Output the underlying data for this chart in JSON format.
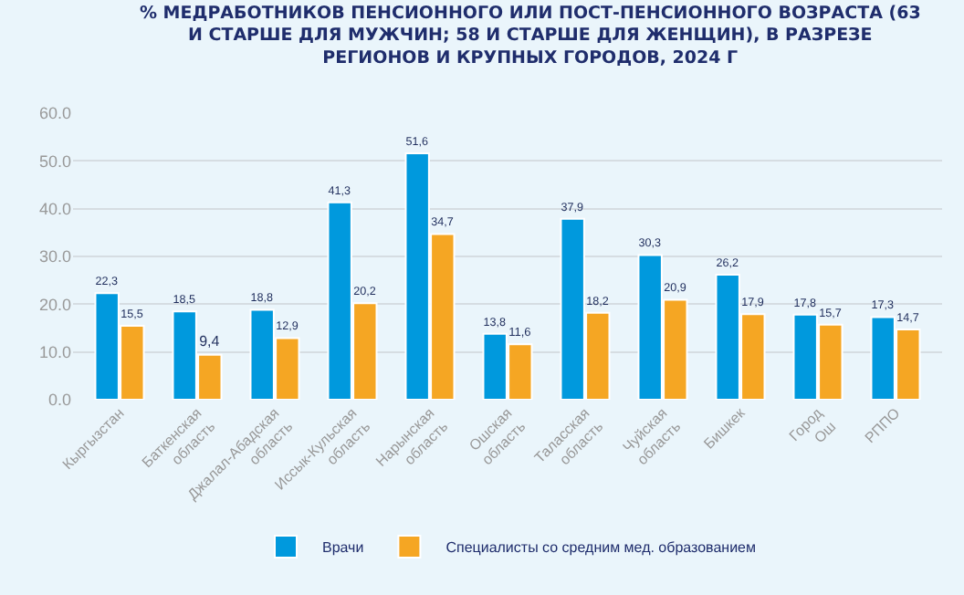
{
  "chart_data": {
    "type": "bar",
    "title": "% МЕДРАБОТНИКОВ ПЕНСИОННОГО ИЛИ ПОСТ-ПЕНСИОННОГО ВОЗРАСТА (63 И СТАРШЕ ДЛЯ МУЖЧИН; 58 И СТАРШЕ ДЛЯ ЖЕНЩИН), В РАЗРЕЗЕ РЕГИОНОВ И КРУПНЫХ ГОРОДОВ, 2024 Г",
    "categories": [
      "Кыргызстан",
      "Баткенская область",
      "Джалал-Абадская область",
      "Иссык-Кульская область",
      "Нарынская область",
      "Ошская область",
      "Таласская область",
      "Чуйская область",
      "Бишкек",
      "Город Ош",
      "РППО"
    ],
    "series": [
      {
        "name": "Врачи",
        "color": "#0099dd",
        "values": [
          22.3,
          18.5,
          18.8,
          41.3,
          51.6,
          13.8,
          37.9,
          30.3,
          26.2,
          17.8,
          17.3
        ],
        "value_labels": [
          "22,3",
          "18,5",
          "18,8",
          "41,3",
          "51,6",
          "13,8",
          "37,9",
          "30,3",
          "26,2",
          "17,8",
          "17,3"
        ]
      },
      {
        "name": "Специалисты со средним мед. образованием",
        "color": "#f5a623",
        "values": [
          15.5,
          9.4,
          12.9,
          20.2,
          34.7,
          11.6,
          18.2,
          20.9,
          17.9,
          15.7,
          14.7
        ],
        "value_labels": [
          "15,5",
          "9,4",
          "12,9",
          "20,2",
          "34,7",
          "11,6",
          "18,2",
          "20,9",
          "17,9",
          "15,7",
          "14,7"
        ]
      }
    ],
    "ylim": [
      0,
      60
    ],
    "yticks": [
      {
        "value": 0,
        "label": "0.0"
      },
      {
        "value": 10,
        "label": "10.0"
      },
      {
        "value": 20,
        "label": "20.0"
      },
      {
        "value": 30,
        "label": "30.0"
      },
      {
        "value": 40,
        "label": "40.0"
      },
      {
        "value": 50,
        "label": "50.0"
      },
      {
        "value": 60,
        "label": "60.0"
      }
    ],
    "grid": "y",
    "legend": "bottom"
  }
}
